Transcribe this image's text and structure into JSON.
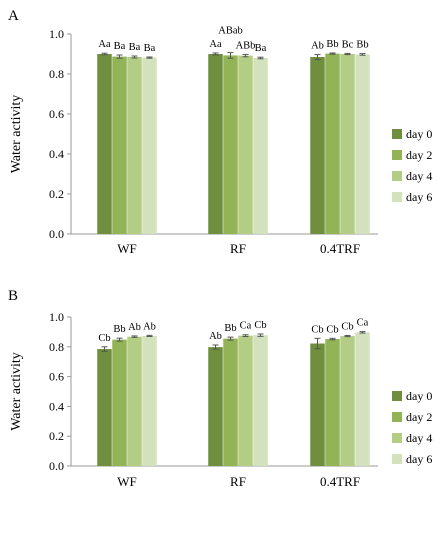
{
  "chart_data": [
    {
      "type": "bar",
      "panel_label": "A",
      "ylabel": "Water activity",
      "ylim": [
        0,
        1.0
      ],
      "yticks": [
        "0.0",
        "0.2",
        "0.4",
        "0.6",
        "0.8",
        "1.0"
      ],
      "categories": [
        "WF",
        "RF",
        "0.4TRF"
      ],
      "series": [
        {
          "name": "day 0",
          "color": "#6f8f3e",
          "values": [
            0.9,
            0.9,
            0.885
          ],
          "errors": [
            0.004,
            0.005,
            0.012
          ],
          "labels": [
            "Aa",
            "Aa",
            "Ab"
          ]
        },
        {
          "name": "day 2",
          "color": "#92b356",
          "values": [
            0.887,
            0.893,
            0.902
          ],
          "errors": [
            0.008,
            0.014,
            0.003
          ],
          "labels": [
            "Ba",
            "ABab",
            "Bb"
          ]
        },
        {
          "name": "day 4",
          "color": "#b3cd85",
          "values": [
            0.885,
            0.892,
            0.9
          ],
          "errors": [
            0.005,
            0.006,
            0.003
          ],
          "labels": [
            "Ba",
            "ABb",
            "Bc"
          ]
        },
        {
          "name": "day 6",
          "color": "#d3e2bd",
          "values": [
            0.882,
            0.88,
            0.898
          ],
          "errors": [
            0.003,
            0.004,
            0.004
          ],
          "labels": [
            "Ba",
            "Ba",
            "Bb"
          ]
        }
      ],
      "legend_position": "right"
    },
    {
      "type": "bar",
      "panel_label": "B",
      "ylabel": "Water activity",
      "ylim": [
        0,
        1.0
      ],
      "yticks": [
        "0.0",
        "0.2",
        "0.4",
        "0.6",
        "0.8",
        "1.0"
      ],
      "categories": [
        "WF",
        "RF",
        "0.4TRF"
      ],
      "series": [
        {
          "name": "day 0",
          "color": "#6f8f3e",
          "values": [
            0.785,
            0.798,
            0.822
          ],
          "errors": [
            0.015,
            0.014,
            0.035
          ],
          "labels": [
            "Cb",
            "Ab",
            "Cb"
          ]
        },
        {
          "name": "day 2",
          "color": "#92b356",
          "values": [
            0.848,
            0.855,
            0.852
          ],
          "errors": [
            0.01,
            0.01,
            0.005
          ],
          "labels": [
            "Bb",
            "Bb",
            "Cb"
          ]
        },
        {
          "name": "day 4",
          "color": "#b3cd85",
          "values": [
            0.868,
            0.875,
            0.872
          ],
          "errors": [
            0.005,
            0.006,
            0.004
          ],
          "labels": [
            "Ab",
            "Ca",
            "Cb"
          ]
        },
        {
          "name": "day 6",
          "color": "#d3e2bd",
          "values": [
            0.873,
            0.878,
            0.897
          ],
          "errors": [
            0.004,
            0.008,
            0.005
          ],
          "labels": [
            "Ab",
            "Cb",
            "Ca"
          ]
        }
      ],
      "legend_position": "right"
    }
  ]
}
